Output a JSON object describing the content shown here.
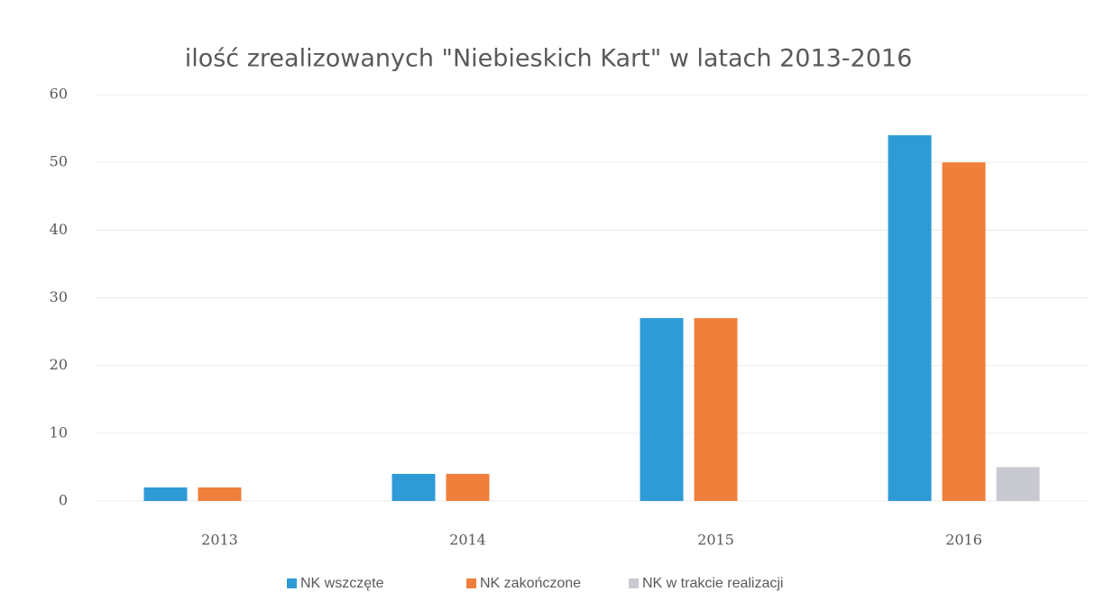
{
  "chart_data": {
    "type": "bar",
    "title": "ilość zrealizowanych \"Niebieskich Kart\" w latach 2013-2016",
    "categories": [
      "2013",
      "2014",
      "2015",
      "2016"
    ],
    "series": [
      {
        "name": "NK wszczęte",
        "color": "#2e9bd6",
        "values": [
          2,
          4,
          27,
          54
        ]
      },
      {
        "name": "NK zakończone",
        "color": "#f07f3c",
        "values": [
          2,
          4,
          27,
          50
        ]
      },
      {
        "name": "NK w trakcie realizacji",
        "color": "#c9c9d1",
        "values": [
          0,
          0,
          0,
          5
        ]
      }
    ],
    "ylim": [
      0,
      60
    ],
    "yticks": [
      0,
      10,
      20,
      30,
      40,
      50,
      60
    ],
    "grid": true,
    "legend": "bottom"
  }
}
